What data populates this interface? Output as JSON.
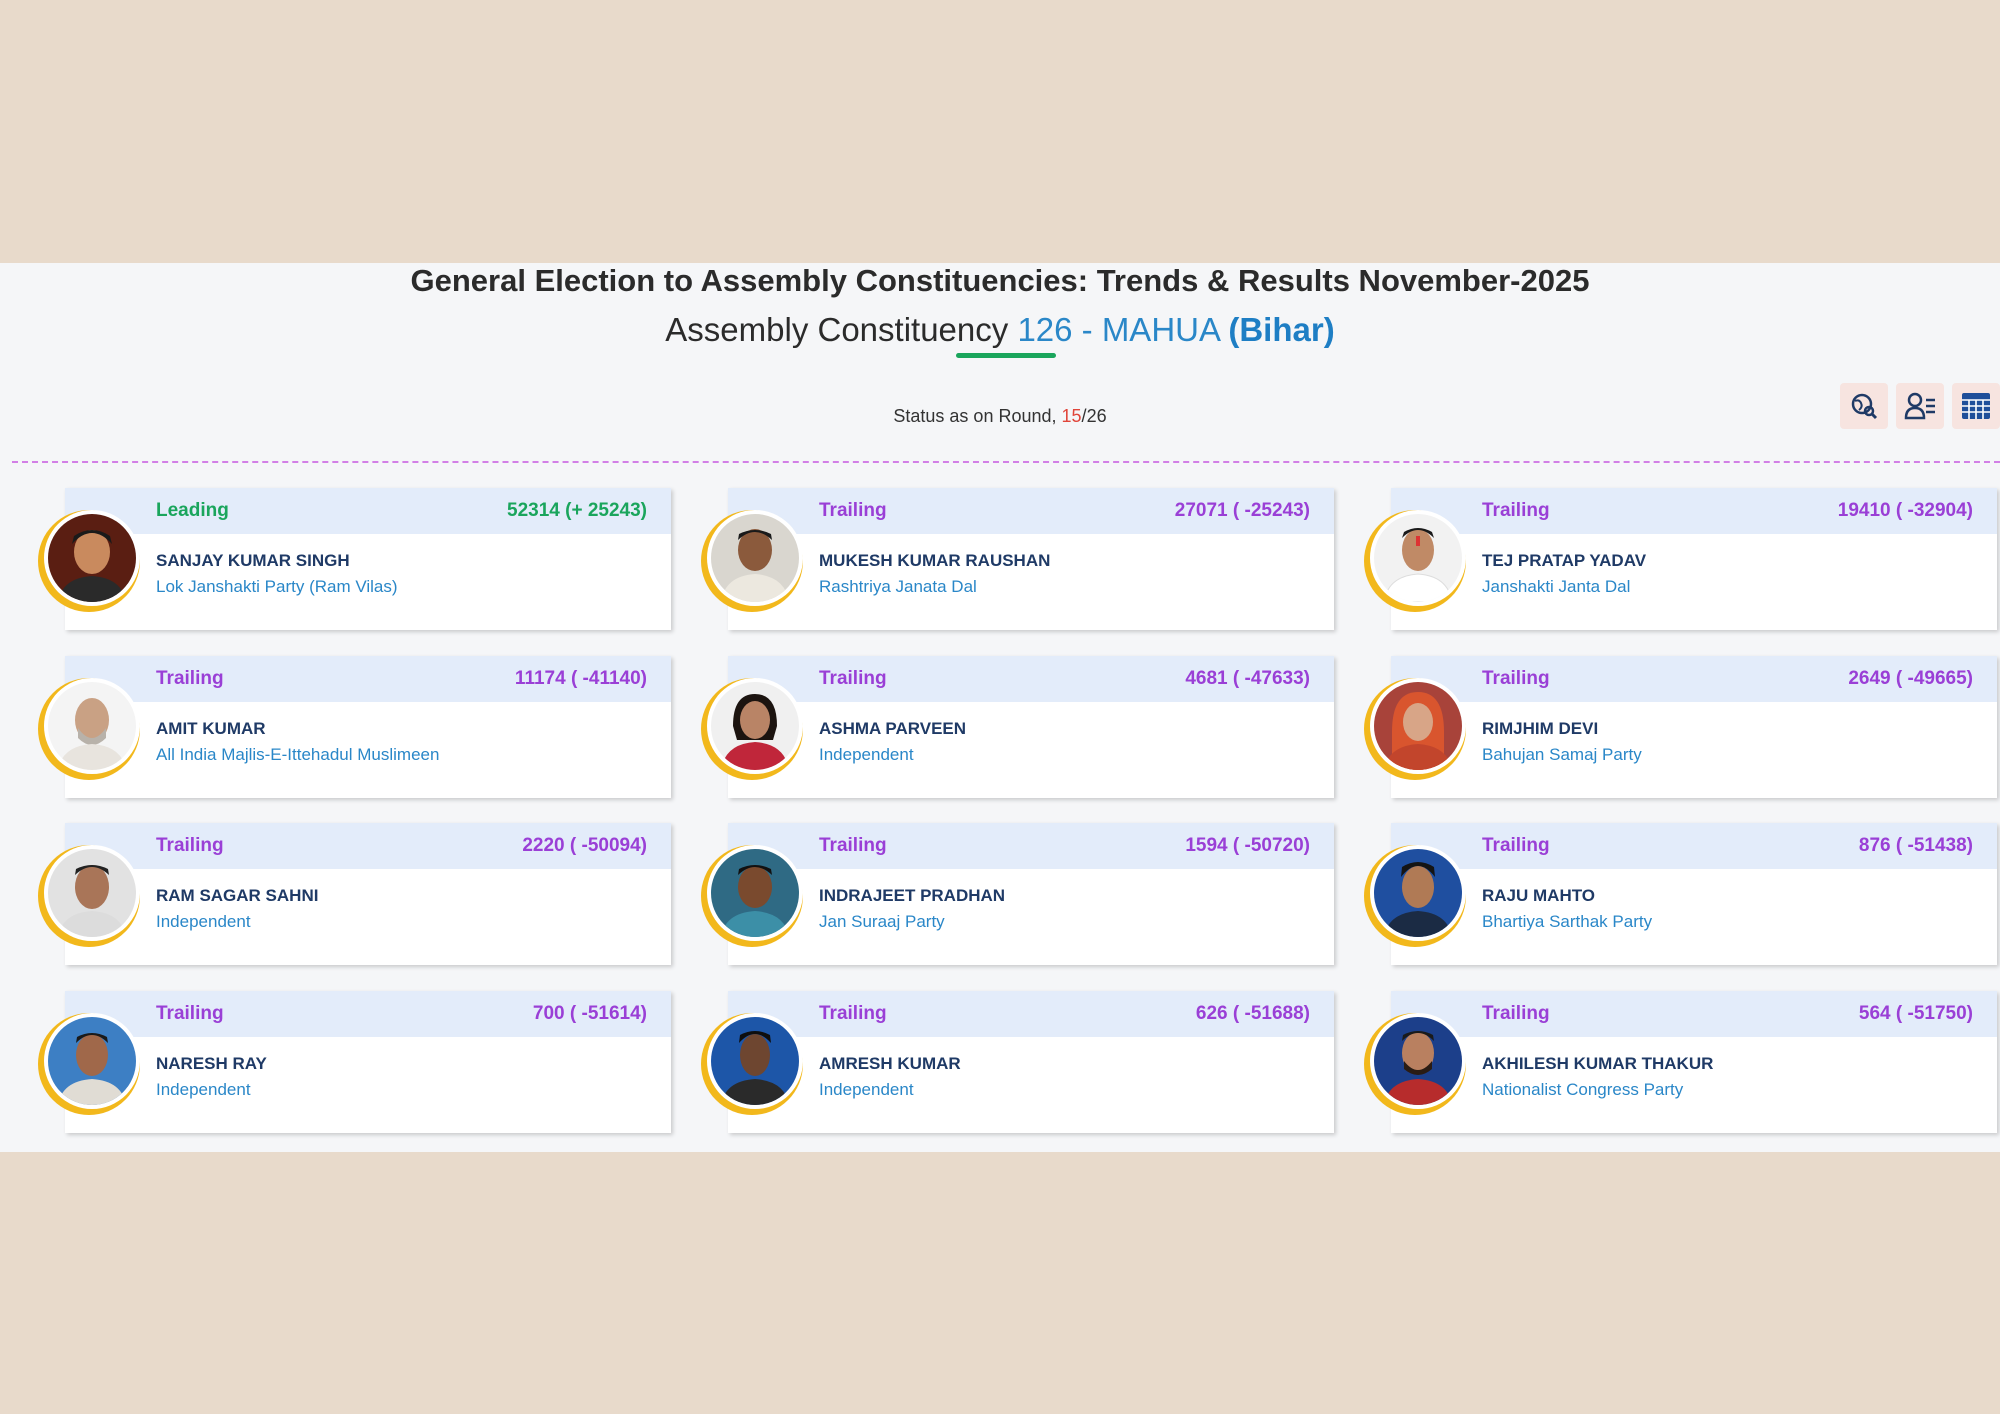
{
  "header": {
    "title": "General Election to Assembly Constituencies: Trends & Results November-2025",
    "constituency_prefix": "Assembly Constituency",
    "constituency_name": "126 - MAHUA",
    "state": "(Bihar)"
  },
  "status": {
    "label": "Status as on Round,",
    "current_round": "15",
    "separator": "/",
    "total_rounds": "26"
  },
  "toolbar": {
    "icons": [
      "globe-search-icon",
      "user-filter-icon",
      "table-grid-icon"
    ]
  },
  "colors": {
    "leading": "#1aa55c",
    "trailing": "#9a3fd6",
    "name": "#1f3a66",
    "party": "#2a87c8",
    "card_header": "#e3ecfa",
    "avatar_ring": "#f2b81c"
  },
  "candidates": [
    {
      "status": "Leading",
      "votes": "52314 (+ 25243)",
      "name": "SANJAY KUMAR SINGH",
      "party": "Lok Janshakti Party (Ram Vilas)"
    },
    {
      "status": "Trailing",
      "votes": "27071 ( -25243)",
      "name": "MUKESH KUMAR RAUSHAN",
      "party": "Rashtriya Janata Dal"
    },
    {
      "status": "Trailing",
      "votes": "19410 ( -32904)",
      "name": "TEJ PRATAP YADAV",
      "party": "Janshakti Janta Dal"
    },
    {
      "status": "Trailing",
      "votes": "11174 ( -41140)",
      "name": "AMIT KUMAR",
      "party": "All India Majlis-E-Ittehadul Muslimeen"
    },
    {
      "status": "Trailing",
      "votes": "4681 ( -47633)",
      "name": "ASHMA PARVEEN",
      "party": "Independent"
    },
    {
      "status": "Trailing",
      "votes": "2649 ( -49665)",
      "name": "RIMJHIM DEVI",
      "party": "Bahujan Samaj Party"
    },
    {
      "status": "Trailing",
      "votes": "2220 ( -50094)",
      "name": "RAM SAGAR SAHNI",
      "party": "Independent"
    },
    {
      "status": "Trailing",
      "votes": "1594 ( -50720)",
      "name": "INDRAJEET PRADHAN",
      "party": "Jan Suraaj Party"
    },
    {
      "status": "Trailing",
      "votes": "876 ( -51438)",
      "name": "RAJU MAHTO",
      "party": "Bhartiya Sarthak Party"
    },
    {
      "status": "Trailing",
      "votes": "700 ( -51614)",
      "name": "NARESH RAY",
      "party": "Independent"
    },
    {
      "status": "Trailing",
      "votes": "626 ( -51688)",
      "name": "AMRESH KUMAR",
      "party": "Independent"
    },
    {
      "status": "Trailing",
      "votes": "564 ( -51750)",
      "name": "AKHILESH KUMAR THAKUR",
      "party": "Nationalist Congress Party"
    }
  ]
}
